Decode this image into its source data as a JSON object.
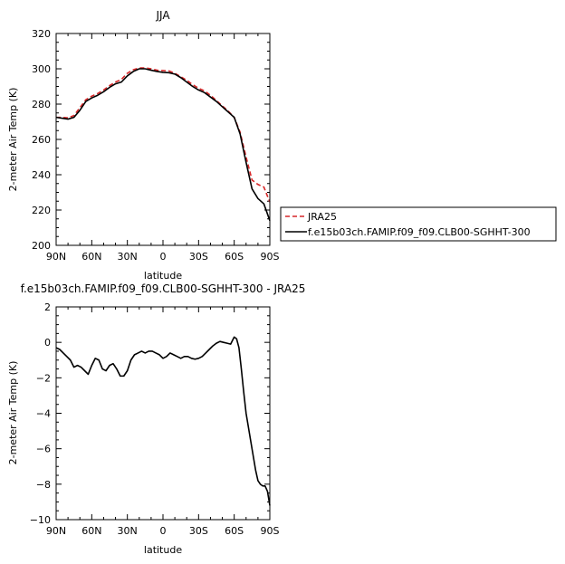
{
  "chart_data": [
    {
      "type": "line",
      "title": "JJA",
      "xlabel": "latitude",
      "ylabel": "2-meter Air Temp (K)",
      "xlim": [
        90,
        -90
      ],
      "ylim": [
        200,
        320
      ],
      "xticks": [
        90,
        60,
        30,
        0,
        -30,
        -60,
        -90
      ],
      "xtick_labels": [
        "90N",
        "60N",
        "30N",
        "0",
        "30S",
        "60S",
        "90S"
      ],
      "yticks": [
        200,
        220,
        240,
        260,
        280,
        300,
        320
      ],
      "ytick_labels": [
        "200",
        "220",
        "240",
        "260",
        "280",
        "300",
        "320"
      ],
      "legend_position": "right",
      "series": [
        {
          "name": "JRA25",
          "color": "#d62728",
          "dash": "dashed",
          "x": [
            90,
            85,
            80,
            75,
            70,
            65,
            60,
            55,
            50,
            45,
            40,
            35,
            30,
            25,
            20,
            15,
            10,
            5,
            0,
            -5,
            -10,
            -15,
            -20,
            -25,
            -30,
            -35,
            -40,
            -45,
            -50,
            -55,
            -60,
            -65,
            -70,
            -75,
            -80,
            -85,
            -90
          ],
          "values": [
            272.5,
            272.5,
            272.2,
            273.5,
            278,
            282.5,
            284.5,
            286,
            288,
            290.5,
            292.5,
            294,
            297.5,
            299.5,
            300.5,
            300.5,
            300,
            299.2,
            299,
            298.8,
            297.5,
            295.5,
            293.5,
            291,
            289,
            287.5,
            285,
            282,
            279,
            276,
            272.5,
            264,
            250,
            237,
            234.5,
            233,
            224.5
          ]
        },
        {
          "name": "f.e15b03ch.FAMIP.f09_f09.CLB00-SGHHT-300",
          "color": "#000000",
          "dash": "solid",
          "x": [
            90,
            85,
            80,
            75,
            70,
            65,
            60,
            55,
            50,
            45,
            40,
            35,
            30,
            25,
            20,
            15,
            10,
            5,
            0,
            -5,
            -10,
            -15,
            -20,
            -25,
            -30,
            -35,
            -40,
            -45,
            -50,
            -55,
            -60,
            -65,
            -70,
            -75,
            -80,
            -85,
            -90
          ],
          "values": [
            272.5,
            272,
            271.5,
            272.5,
            276.5,
            281.5,
            283.5,
            285,
            287,
            289.5,
            291.5,
            292.5,
            296,
            298.5,
            300,
            300,
            299.2,
            298.5,
            298,
            297.8,
            297,
            295,
            292.5,
            290,
            288,
            286.5,
            284,
            281.5,
            278.5,
            275.5,
            272.5,
            263,
            247,
            232,
            226.5,
            223.5,
            214
          ]
        }
      ]
    },
    {
      "type": "line",
      "title": "f.e15b03ch.FAMIP.f09_f09.CLB00-SGHHT-300  -  JRA25",
      "xlabel": "latitude",
      "ylabel": "2-meter Air Temp (K)",
      "xlim": [
        90,
        -90
      ],
      "ylim": [
        -10,
        2
      ],
      "xticks": [
        90,
        60,
        30,
        0,
        -30,
        -60,
        -90
      ],
      "xtick_labels": [
        "90N",
        "60N",
        "30N",
        "0",
        "30S",
        "60S",
        "90S"
      ],
      "yticks": [
        -10,
        -8,
        -6,
        -4,
        -2,
        0,
        2
      ],
      "ytick_labels": [
        "−10",
        "−8",
        "−6",
        "−4",
        "−2",
        "0",
        "2"
      ],
      "series": [
        {
          "color": "#000000",
          "dash": "solid",
          "x": [
            90,
            87,
            84,
            81,
            78,
            75,
            72,
            69,
            66,
            63,
            60,
            57,
            54,
            51,
            48,
            45,
            42,
            39,
            36,
            33,
            30,
            27,
            24,
            21,
            18,
            15,
            12,
            9,
            6,
            3,
            0,
            -3,
            -6,
            -9,
            -12,
            -15,
            -18,
            -21,
            -24,
            -27,
            -30,
            -33,
            -36,
            -39,
            -42,
            -45,
            -48,
            -51,
            -54,
            -57,
            -60,
            -62,
            -64,
            -66,
            -68,
            -70,
            -72,
            -74,
            -76,
            -78,
            -80,
            -82,
            -84,
            -86,
            -88,
            -90
          ],
          "values": [
            -0.3,
            -0.4,
            -0.6,
            -0.8,
            -1.0,
            -1.4,
            -1.3,
            -1.4,
            -1.6,
            -1.8,
            -1.3,
            -0.9,
            -1.0,
            -1.5,
            -1.6,
            -1.3,
            -1.2,
            -1.5,
            -1.9,
            -1.9,
            -1.6,
            -1.0,
            -0.7,
            -0.6,
            -0.5,
            -0.6,
            -0.5,
            -0.5,
            -0.6,
            -0.7,
            -0.9,
            -0.8,
            -0.6,
            -0.7,
            -0.8,
            -0.9,
            -0.8,
            -0.8,
            -0.9,
            -0.95,
            -0.9,
            -0.8,
            -0.6,
            -0.4,
            -0.2,
            -0.05,
            0.05,
            0.0,
            -0.05,
            -0.1,
            0.3,
            0.2,
            -0.3,
            -1.5,
            -2.8,
            -4.0,
            -4.8,
            -5.6,
            -6.4,
            -7.2,
            -7.8,
            -8.0,
            -8.1,
            -8.1,
            -8.4,
            -9.2
          ]
        }
      ]
    }
  ]
}
